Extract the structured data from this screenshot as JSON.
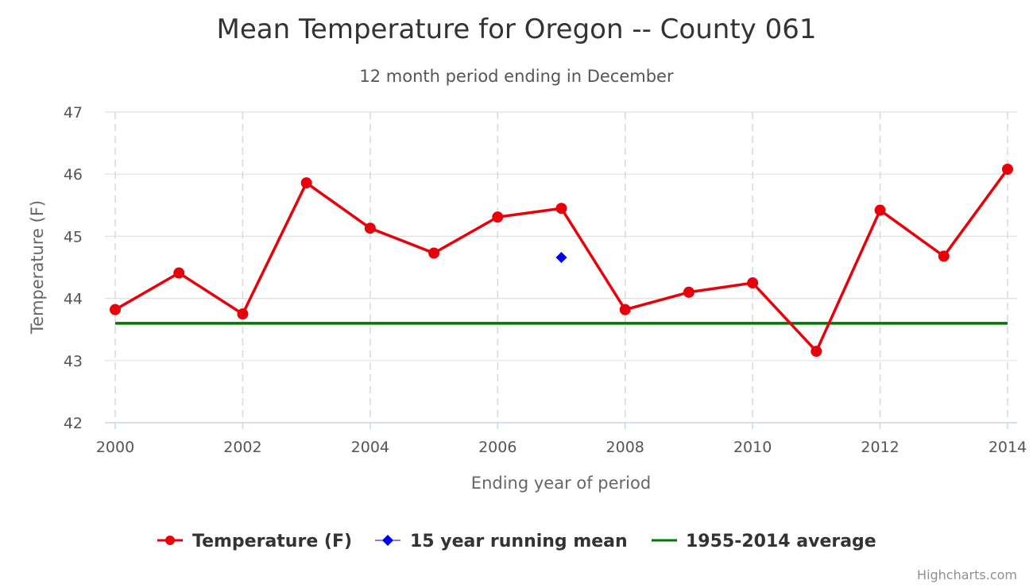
{
  "chart_data": {
    "type": "line",
    "title": "Mean Temperature for Oregon -- County 061",
    "subtitle": "12 month period ending in December",
    "xlabel": "Ending year of period",
    "ylabel": "Temperature (F)",
    "xlim": [
      2000,
      2014
    ],
    "ylim": [
      42,
      47
    ],
    "x_ticks": [
      "2000",
      "2002",
      "2004",
      "2006",
      "2008",
      "2010",
      "2012",
      "2014"
    ],
    "y_ticks": [
      "42",
      "43",
      "44",
      "45",
      "46",
      "47"
    ],
    "grid": true,
    "legend_position": "bottom-center",
    "series": [
      {
        "name": "Temperature (F)",
        "color": "#e8000b",
        "marker": "circle",
        "x": [
          2000,
          2001,
          2002,
          2003,
          2004,
          2005,
          2006,
          2007,
          2008,
          2009,
          2010,
          2011,
          2012,
          2013,
          2014
        ],
        "values": [
          43.82,
          44.41,
          43.75,
          45.86,
          45.13,
          44.73,
          45.31,
          45.45,
          43.82,
          44.1,
          44.25,
          43.15,
          45.42,
          44.68,
          46.08
        ]
      },
      {
        "name": "15 year running mean",
        "color": "#0000ee",
        "marker": "diamond",
        "x": [
          2007
        ],
        "values": [
          44.66
        ]
      },
      {
        "name": "1955-2014 average",
        "color": "#007700",
        "marker": "none",
        "x": [
          2000,
          2014
        ],
        "values": [
          43.6,
          43.6
        ]
      }
    ]
  },
  "credits": "Highcharts.com"
}
